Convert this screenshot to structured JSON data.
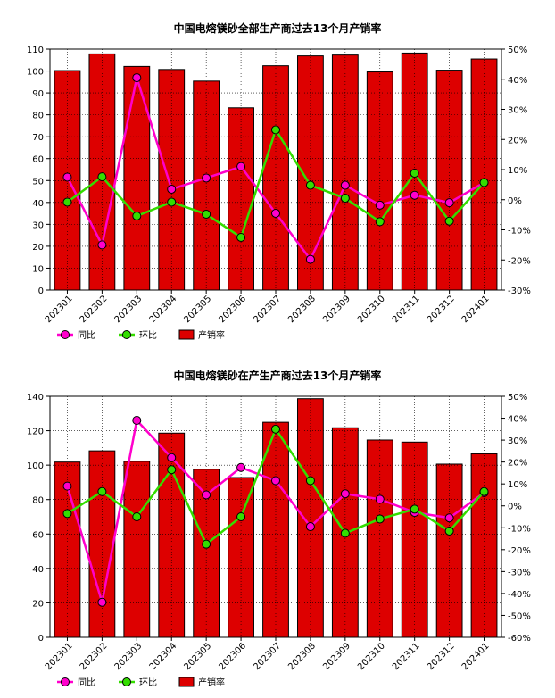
{
  "chart_data": [
    {
      "type": "bar",
      "title": "中国电熔镁砂全部生产商过去13个月产销率",
      "categories": [
        "202301",
        "202302",
        "202303",
        "202304",
        "202305",
        "202306",
        "202307",
        "202308",
        "202309",
        "202310",
        "202311",
        "202312",
        "202401"
      ],
      "ylim": [
        0,
        110
      ],
      "y_ticks": [
        0,
        10,
        20,
        30,
        40,
        50,
        60,
        70,
        80,
        90,
        100,
        110
      ],
      "y2lim": [
        -30,
        50
      ],
      "y2_ticks": [
        "-30%",
        "-20%",
        "-10%",
        "0%",
        "10%",
        "20%",
        "30%",
        "40%",
        "50%"
      ],
      "grid": true,
      "legend_position": "bottom-left",
      "series": [
        {
          "name": "产销率",
          "type": "bar",
          "axis": "left",
          "color": "#dd0000",
          "values": [
            100.2,
            107.8,
            102.1,
            100.7,
            95.4,
            83.2,
            102.4,
            106.9,
            107.3,
            99.6,
            108.2,
            100.4,
            105.5
          ]
        },
        {
          "name": "同比",
          "type": "line",
          "axis": "right",
          "color": "#ff00cc",
          "values": [
            7.5,
            -15.0,
            40.5,
            3.5,
            7.2,
            11.0,
            -4.5,
            -19.8,
            4.8,
            -1.8,
            1.5,
            -1.0,
            5.7
          ]
        },
        {
          "name": "环比",
          "type": "line",
          "axis": "right",
          "color": "#33dd00",
          "values": [
            -0.8,
            7.6,
            -5.4,
            -0.8,
            -4.8,
            -12.5,
            23.2,
            4.8,
            0.5,
            -7.3,
            8.8,
            -7.1,
            5.7
          ]
        }
      ]
    },
    {
      "type": "bar",
      "title": "中国电熔镁砂在产生产商过去13个月产销率",
      "categories": [
        "202301",
        "202302",
        "202303",
        "202304",
        "202305",
        "202306",
        "202307",
        "202308",
        "202309",
        "202310",
        "202311",
        "202312",
        "202401"
      ],
      "ylim": [
        0,
        140
      ],
      "y_ticks": [
        0,
        20,
        40,
        60,
        80,
        100,
        120,
        140
      ],
      "y2lim": [
        -60,
        50
      ],
      "y2_ticks": [
        "-60%",
        "-50%",
        "-40%",
        "-30%",
        "-20%",
        "-10%",
        "0%",
        "10%",
        "20%",
        "30%",
        "40%",
        "50%"
      ],
      "grid": true,
      "legend_position": "bottom-left",
      "series": [
        {
          "name": "产销率",
          "type": "bar",
          "axis": "left",
          "color": "#dd0000",
          "values": [
            101.8,
            108.3,
            102.2,
            118.6,
            97.6,
            92.8,
            124.9,
            138.6,
            121.7,
            114.6,
            113.4,
            100.6,
            106.6
          ]
        },
        {
          "name": "同比",
          "type": "line",
          "axis": "right",
          "color": "#ff00cc",
          "values": [
            9.0,
            -44.0,
            39.0,
            22.0,
            5.0,
            17.5,
            11.5,
            -9.5,
            5.5,
            3.0,
            -3.0,
            -5.5,
            6.0
          ]
        },
        {
          "name": "环比",
          "type": "line",
          "axis": "right",
          "color": "#33dd00",
          "values": [
            -3.5,
            6.5,
            -5.0,
            16.5,
            -17.5,
            -5.0,
            35.0,
            11.5,
            -12.5,
            -6.0,
            -1.5,
            -11.5,
            6.5
          ]
        }
      ]
    }
  ],
  "legend": {
    "yoy_label": "同比",
    "mom_label": "环比",
    "bar_label": "产销率"
  }
}
